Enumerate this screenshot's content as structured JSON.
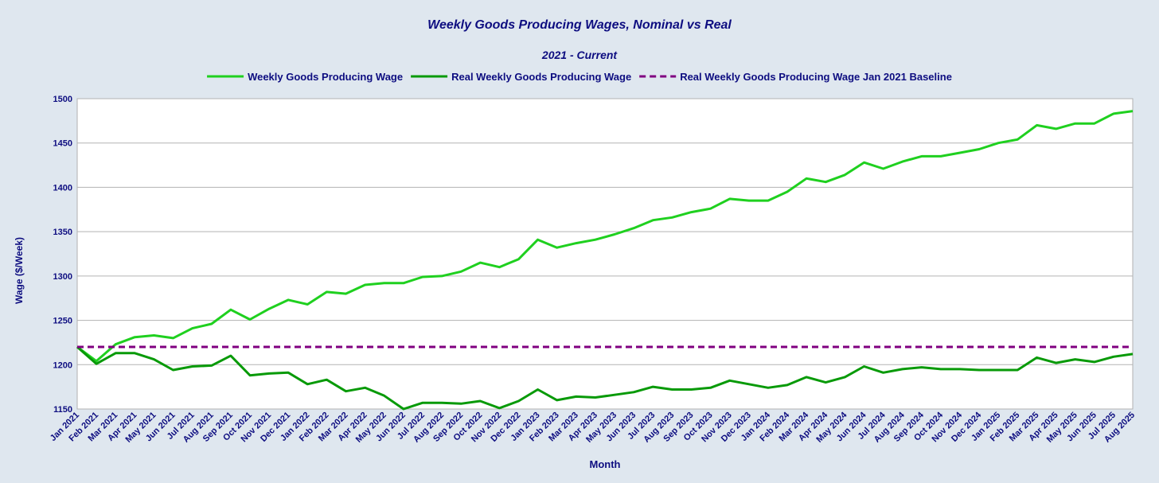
{
  "chart_data": {
    "type": "line",
    "title": "Weekly Goods Producing Wages, Nominal vs Real",
    "subtitle": "2021 - Current",
    "xlabel": "Month",
    "ylabel": "Wage ($/Week)",
    "ylim": [
      1150,
      1500
    ],
    "yticks": [
      1150,
      1200,
      1250,
      1300,
      1350,
      1400,
      1450,
      1500
    ],
    "grid": "horizontal",
    "legend_position": "top-center",
    "categories": [
      "Jan 2021",
      "Feb 2021",
      "Mar 2021",
      "Apr 2021",
      "May 2021",
      "Jun 2021",
      "Jul 2021",
      "Aug 2021",
      "Sep 2021",
      "Oct 2021",
      "Nov 2021",
      "Dec 2021",
      "Jan 2022",
      "Feb 2022",
      "Mar 2022",
      "Apr 2022",
      "May 2022",
      "Jun 2022",
      "Jul 2022",
      "Aug 2022",
      "Sep 2022",
      "Oct 2022",
      "Nov 2022",
      "Dec 2022",
      "Jan 2023",
      "Feb 2023",
      "Mar 2023",
      "Apr 2023",
      "May 2023",
      "Jun 2023",
      "Jul 2023",
      "Aug 2023",
      "Sep 2023",
      "Oct 2023",
      "Nov 2023",
      "Dec 2023",
      "Jan 2024",
      "Feb 2024",
      "Mar 2024",
      "Apr 2024",
      "May 2024",
      "Jun 2024",
      "Jul 2024",
      "Aug 2024",
      "Sep 2024",
      "Oct 2024",
      "Nov 2024",
      "Dec 2024",
      "Jan 2025",
      "Feb 2025",
      "Mar 2025",
      "Apr 2025",
      "May 2025",
      "Jun 2025",
      "Jul 2025",
      "Aug 2025"
    ],
    "series": [
      {
        "name": "Weekly Goods Producing Wage",
        "color": "#1fd01f",
        "dash": "solid",
        "values": [
          1220,
          1204,
          1223,
          1231,
          1233,
          1230,
          1241,
          1246,
          1262,
          1251,
          1263,
          1273,
          1268,
          1282,
          1280,
          1290,
          1292,
          1292,
          1299,
          1300,
          1305,
          1315,
          1310,
          1319,
          1341,
          1332,
          1337,
          1341,
          1347,
          1354,
          1363,
          1366,
          1372,
          1376,
          1387,
          1385,
          1385,
          1395,
          1410,
          1406,
          1414,
          1428,
          1421,
          1429,
          1435,
          1435,
          1439,
          1443,
          1450,
          1454,
          1470,
          1466,
          1472,
          1472,
          1483,
          1486
        ]
      },
      {
        "name": "Real Weekly Goods Producing Wage",
        "color": "#089a08",
        "dash": "solid",
        "values": [
          1220,
          1201,
          1213,
          1213,
          1206,
          1194,
          1198,
          1199,
          1210,
          1188,
          1190,
          1191,
          1178,
          1183,
          1170,
          1174,
          1165,
          1150,
          1157,
          1157,
          1156,
          1159,
          1151,
          1159,
          1172,
          1160,
          1164,
          1163,
          1166,
          1169,
          1175,
          1172,
          1172,
          1174,
          1182,
          1178,
          1174,
          1177,
          1186,
          1180,
          1186,
          1198,
          1191,
          1195,
          1197,
          1195,
          1195,
          1194,
          1194,
          1194,
          1208,
          1202,
          1206,
          1203,
          1209,
          1212
        ]
      },
      {
        "name": "Real Weekly Goods Producing Wage Jan 2021 Baseline",
        "color": "#800080",
        "dash": "dashed",
        "values": [
          1220,
          1220,
          1220,
          1220,
          1220,
          1220,
          1220,
          1220,
          1220,
          1220,
          1220,
          1220,
          1220,
          1220,
          1220,
          1220,
          1220,
          1220,
          1220,
          1220,
          1220,
          1220,
          1220,
          1220,
          1220,
          1220,
          1220,
          1220,
          1220,
          1220,
          1220,
          1220,
          1220,
          1220,
          1220,
          1220,
          1220,
          1220,
          1220,
          1220,
          1220,
          1220,
          1220,
          1220,
          1220,
          1220,
          1220,
          1220,
          1220,
          1220,
          1220,
          1220,
          1220,
          1220,
          1220,
          1220
        ]
      }
    ]
  }
}
